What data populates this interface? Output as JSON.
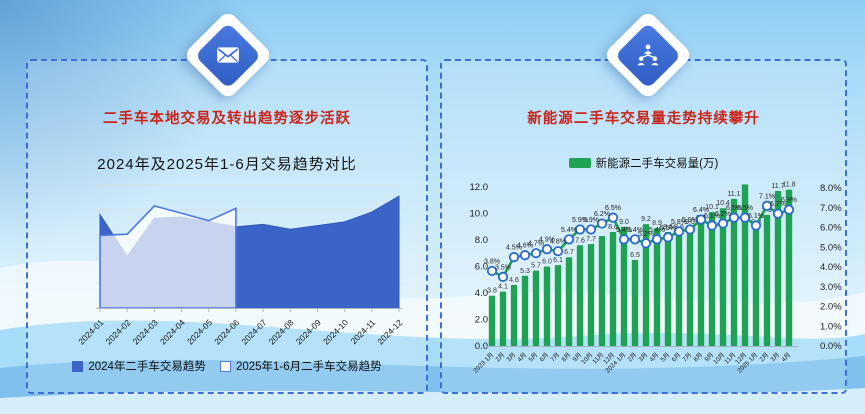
{
  "colors": {
    "accent_blue": "#3a6bd8",
    "panel_border": "#3e6fd6",
    "title_red": "#c9261c",
    "area_2024_fill": "#3b63c8",
    "area_2025_stroke": "#4d79e0",
    "bar_green": "#1fa254",
    "line_green": "#19a04e",
    "marker_ring_blue": "#2a68cc"
  },
  "left_panel": {
    "icon": "mail-icon",
    "title": "二手车本地交易及转出趋势逐步活跃",
    "subtitle": "2024年及2025年1-6月交易趋势对比",
    "legend": [
      {
        "swatch": "solid-blue",
        "label": "2024年二手车交易趋势"
      },
      {
        "swatch": "outline-blue",
        "label": "2025年1-6月二手车交易趋势"
      }
    ]
  },
  "right_panel": {
    "icon": "team-network-icon",
    "title": "新能源二手车交易量走势持续攀升",
    "legend": [
      {
        "swatch": "solid-green",
        "label": "新能源二手车交易量(万)"
      }
    ]
  },
  "chart_data": [
    {
      "panel": "left",
      "type": "area",
      "title": "2024年及2025年1-6月交易趋势对比",
      "categories": [
        "2024-01",
        "2024-02",
        "2024-03",
        "2024-04",
        "2024-05",
        "2024-06",
        "2024-07",
        "2024-08",
        "2024-09",
        "2024-10",
        "2024-11",
        "2024-12"
      ],
      "series": [
        {
          "name": "2024年二手车交易趋势",
          "values": [
            7.6,
            4.2,
            7.3,
            7.4,
            7.0,
            6.6,
            6.8,
            6.4,
            6.7,
            7.0,
            7.8,
            9.1
          ]
        },
        {
          "name": "2025年1-6月二手车交易趋势",
          "values": [
            5.9,
            6.0,
            8.3,
            7.7,
            7.1,
            8.1
          ]
        }
      ],
      "ylim": [
        0,
        10
      ],
      "grid": "horizontal",
      "y_axis_labels": "none",
      "legend_position": "bottom"
    },
    {
      "panel": "right",
      "type": "bar+line",
      "categories": [
        "2023 1月",
        "2月",
        "3月",
        "4月",
        "5月",
        "6月",
        "7月",
        "8月",
        "9月",
        "10月",
        "11月",
        "12月",
        "2024 1月",
        "2月",
        "3月",
        "4月",
        "5月",
        "6月",
        "7月",
        "8月",
        "9月",
        "10月",
        "11月",
        "12月",
        "2025 1月",
        "2月",
        "3月",
        "4月"
      ],
      "bar_series": {
        "name": "新能源二手车交易量(万)",
        "values": [
          3.8,
          4.1,
          4.6,
          5.3,
          5.7,
          6.0,
          6.1,
          6.7,
          7.6,
          7.7,
          8.3,
          8.6,
          9.0,
          6.5,
          9.2,
          8.9,
          8.6,
          8.6,
          9.0,
          9.3,
          10.1,
          10.4,
          11.1,
          12.2,
          9.0,
          9.9,
          11.7,
          11.8
        ],
        "labels": [
          "3.8",
          "4.1",
          "4.6",
          "5.3",
          "5.7",
          "6.0",
          "6.1",
          "6.7",
          "7.6",
          "7.7",
          "",
          "8.6",
          "9.0",
          "6.5",
          "9.2",
          "8.9",
          "8.6",
          "8.6",
          "9.0",
          "9.3",
          "10.1",
          "10.4",
          "11.1",
          "",
          "9.0",
          "9.9",
          "11.7",
          "11.8"
        ]
      },
      "line_series": {
        "values_percent": [
          3.8,
          3.5,
          4.5,
          4.6,
          4.7,
          4.9,
          4.8,
          5.4,
          5.9,
          5.9,
          6.2,
          6.5,
          5.4,
          5.4,
          5.2,
          5.4,
          5.5,
          5.8,
          5.9,
          6.4,
          6.1,
          6.2,
          6.5,
          6.5,
          6.1,
          7.1,
          6.7,
          6.9
        ],
        "labels": [
          "3.8%",
          "3.5%",
          "4.5%",
          "4.6%",
          "4.7%",
          "4.9%",
          "4.8%",
          "5.4%",
          "5.9%",
          "5.9%",
          "6.2%",
          "6.5%",
          "5.4%",
          "5.4%",
          "5.2%",
          "5.4%",
          "5.5%",
          "5.8%",
          "5.9%",
          "6.4%",
          "6.1%",
          "6.2%",
          "6.5%",
          "6.5%",
          "6.1%",
          "7.1%",
          "6.7%",
          "6.9%"
        ]
      },
      "left_axis": {
        "min": 0,
        "max": 12,
        "labels": [
          "0.0",
          "2.0",
          "4.0",
          "6.0",
          "8.0",
          "10.0",
          "12.0"
        ]
      },
      "right_axis": {
        "min": 0,
        "max": 8,
        "labels": [
          "0.0%",
          "1.0%",
          "2.0%",
          "3.0%",
          "4.0%",
          "5.0%",
          "6.0%",
          "7.0%",
          "8.0%"
        ]
      }
    }
  ]
}
